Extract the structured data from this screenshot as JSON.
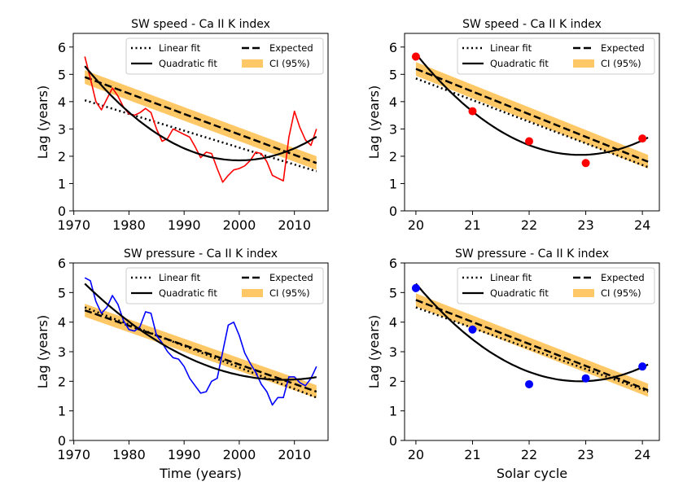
{
  "figure": {
    "legend_labels": {
      "linear": "Linear fit",
      "quadratic": "Quadratic fit",
      "expected": "Expected",
      "ci": "CI (95%)"
    },
    "colors": {
      "ci_band": "#ffc866",
      "speed_series": "#ff0000",
      "pressure_series": "#0000ff",
      "fit_lines": "#000000"
    }
  },
  "chart_data": [
    {
      "id": "speed-time",
      "type": "line",
      "title": "SW speed - Ca II K index",
      "xlabel": "",
      "ylabel": "Lag (years)",
      "xlim": [
        1969.9,
        2016.1
      ],
      "ylim": [
        0,
        6.5
      ],
      "xticks": [
        1970,
        1980,
        1990,
        2000,
        2010
      ],
      "yticks": [
        0,
        1,
        2,
        3,
        4,
        5,
        6
      ],
      "legend_position": "top-right",
      "series_color": "#ff0000",
      "data_style": "line",
      "x": [
        1972,
        1973,
        1974,
        1975,
        1976,
        1977,
        1978,
        1979,
        1980,
        1981,
        1982,
        1983,
        1984,
        1985,
        1986,
        1987,
        1988,
        1989,
        1990,
        1991,
        1992,
        1993,
        1994,
        1995,
        1996,
        1997,
        1998,
        1999,
        2000,
        2001,
        2002,
        2003,
        2004,
        2005,
        2006,
        2007,
        2008,
        2009,
        2010,
        2011,
        2012,
        2013,
        2014
      ],
      "values": [
        5.65,
        4.85,
        4.0,
        3.7,
        4.1,
        4.5,
        4.2,
        3.8,
        3.55,
        3.5,
        3.6,
        3.75,
        3.6,
        3.0,
        2.55,
        2.65,
        3.0,
        2.9,
        2.8,
        2.7,
        2.35,
        1.95,
        2.15,
        2.1,
        1.55,
        1.05,
        1.3,
        1.5,
        1.55,
        1.65,
        1.85,
        2.15,
        2.1,
        1.8,
        1.3,
        1.2,
        1.1,
        2.7,
        3.65,
        3.05,
        2.6,
        2.4,
        3.0
      ],
      "linear_fit": {
        "x_start": 1972,
        "y_start": 4.05,
        "x_end": 2014,
        "y_end": 1.45
      },
      "expected": {
        "x_start": 1972,
        "y_start": 4.9,
        "x_end": 2014,
        "y_end": 1.75
      },
      "ci_half_width": 0.25,
      "quadratic_fit": {
        "x_start": 1972,
        "y_start": 5.3,
        "vertex_x": 2000,
        "vertex_y": 1.85,
        "x_end": 2014,
        "y_end": 2.7
      }
    },
    {
      "id": "speed-cycle",
      "type": "scatter",
      "title": "SW speed - Ca II K index",
      "xlabel": "",
      "ylabel": "Lag (years)",
      "xlim": [
        19.8,
        24.3
      ],
      "ylim": [
        0,
        6.5
      ],
      "xticks": [
        20,
        21,
        22,
        23,
        24
      ],
      "yticks": [
        0,
        1,
        2,
        3,
        4,
        5,
        6
      ],
      "legend_position": "top-right",
      "series_color": "#ff0000",
      "data_style": "points",
      "x": [
        20,
        21,
        22,
        23,
        24
      ],
      "values": [
        5.65,
        3.65,
        2.55,
        1.75,
        2.65
      ],
      "linear_fit": {
        "x_start": 20,
        "y_start": 4.85,
        "x_end": 24.1,
        "y_end": 1.6
      },
      "expected": {
        "x_start": 20,
        "y_start": 5.2,
        "x_end": 24.1,
        "y_end": 1.8
      },
      "ci_half_width": 0.25,
      "quadratic_fit": {
        "x_start": 20,
        "y_start": 5.75,
        "vertex_x": 22.9,
        "vertex_y": 2.05,
        "x_end": 24.1,
        "y_end": 2.65
      }
    },
    {
      "id": "pressure-time",
      "type": "line",
      "title": "SW pressure - Ca II K index",
      "xlabel": "Time (years)",
      "ylabel": "Lag (years)",
      "xlim": [
        1969.9,
        2016.1
      ],
      "ylim": [
        0,
        6
      ],
      "xticks": [
        1970,
        1980,
        1990,
        2000,
        2010
      ],
      "yticks": [
        0,
        1,
        2,
        3,
        4,
        5,
        6
      ],
      "legend_position": "top-right",
      "series_color": "#0000ff",
      "data_style": "line",
      "x": [
        1972,
        1973,
        1974,
        1975,
        1976,
        1977,
        1978,
        1979,
        1980,
        1981,
        1982,
        1983,
        1984,
        1985,
        1986,
        1987,
        1988,
        1989,
        1990,
        1991,
        1992,
        1993,
        1994,
        1995,
        1996,
        1997,
        1998,
        1999,
        2000,
        2001,
        2002,
        2003,
        2004,
        2005,
        2006,
        2007,
        2008,
        2009,
        2010,
        2011,
        2012,
        2013,
        2014
      ],
      "values": [
        5.5,
        5.4,
        4.7,
        4.3,
        4.5,
        4.9,
        4.6,
        4.05,
        3.75,
        3.7,
        3.85,
        4.35,
        4.3,
        3.55,
        3.3,
        3.0,
        2.8,
        2.75,
        2.5,
        2.1,
        1.85,
        1.6,
        1.65,
        2.0,
        2.1,
        3.0,
        3.9,
        4.0,
        3.55,
        2.95,
        2.6,
        2.3,
        1.9,
        1.65,
        1.2,
        1.45,
        1.45,
        2.15,
        2.15,
        1.95,
        1.85,
        2.1,
        2.5
      ],
      "linear_fit": {
        "x_start": 1972,
        "y_start": 4.5,
        "x_end": 2014,
        "y_end": 1.45
      },
      "expected": {
        "x_start": 1972,
        "y_start": 4.4,
        "x_end": 2014,
        "y_end": 1.65
      },
      "ci_half_width": 0.22,
      "quadratic_fit": {
        "x_start": 1972,
        "y_start": 5.3,
        "vertex_x": 2008,
        "vertex_y": 2.05,
        "x_end": 2014,
        "y_end": 2.1
      }
    },
    {
      "id": "pressure-cycle",
      "type": "scatter",
      "title": "SW pressure - Ca II K index",
      "xlabel": "Solar cycle",
      "ylabel": "Lag (years)",
      "xlim": [
        19.8,
        24.3
      ],
      "ylim": [
        0,
        6
      ],
      "xticks": [
        20,
        21,
        22,
        23,
        24
      ],
      "yticks": [
        0,
        1,
        2,
        3,
        4,
        5,
        6
      ],
      "legend_position": "top-right",
      "series_color": "#0000ff",
      "data_style": "points",
      "x": [
        20,
        21,
        22,
        23,
        24
      ],
      "values": [
        5.15,
        3.75,
        1.9,
        2.1,
        2.5
      ],
      "linear_fit": {
        "x_start": 20,
        "y_start": 4.5,
        "x_end": 24.1,
        "y_end": 1.65
      },
      "expected": {
        "x_start": 20,
        "y_start": 4.75,
        "x_end": 24.1,
        "y_end": 1.7
      },
      "ci_half_width": 0.22,
      "quadratic_fit": {
        "x_start": 20,
        "y_start": 5.3,
        "vertex_x": 22.9,
        "vertex_y": 2.0,
        "x_end": 24.1,
        "y_end": 2.6
      }
    }
  ]
}
